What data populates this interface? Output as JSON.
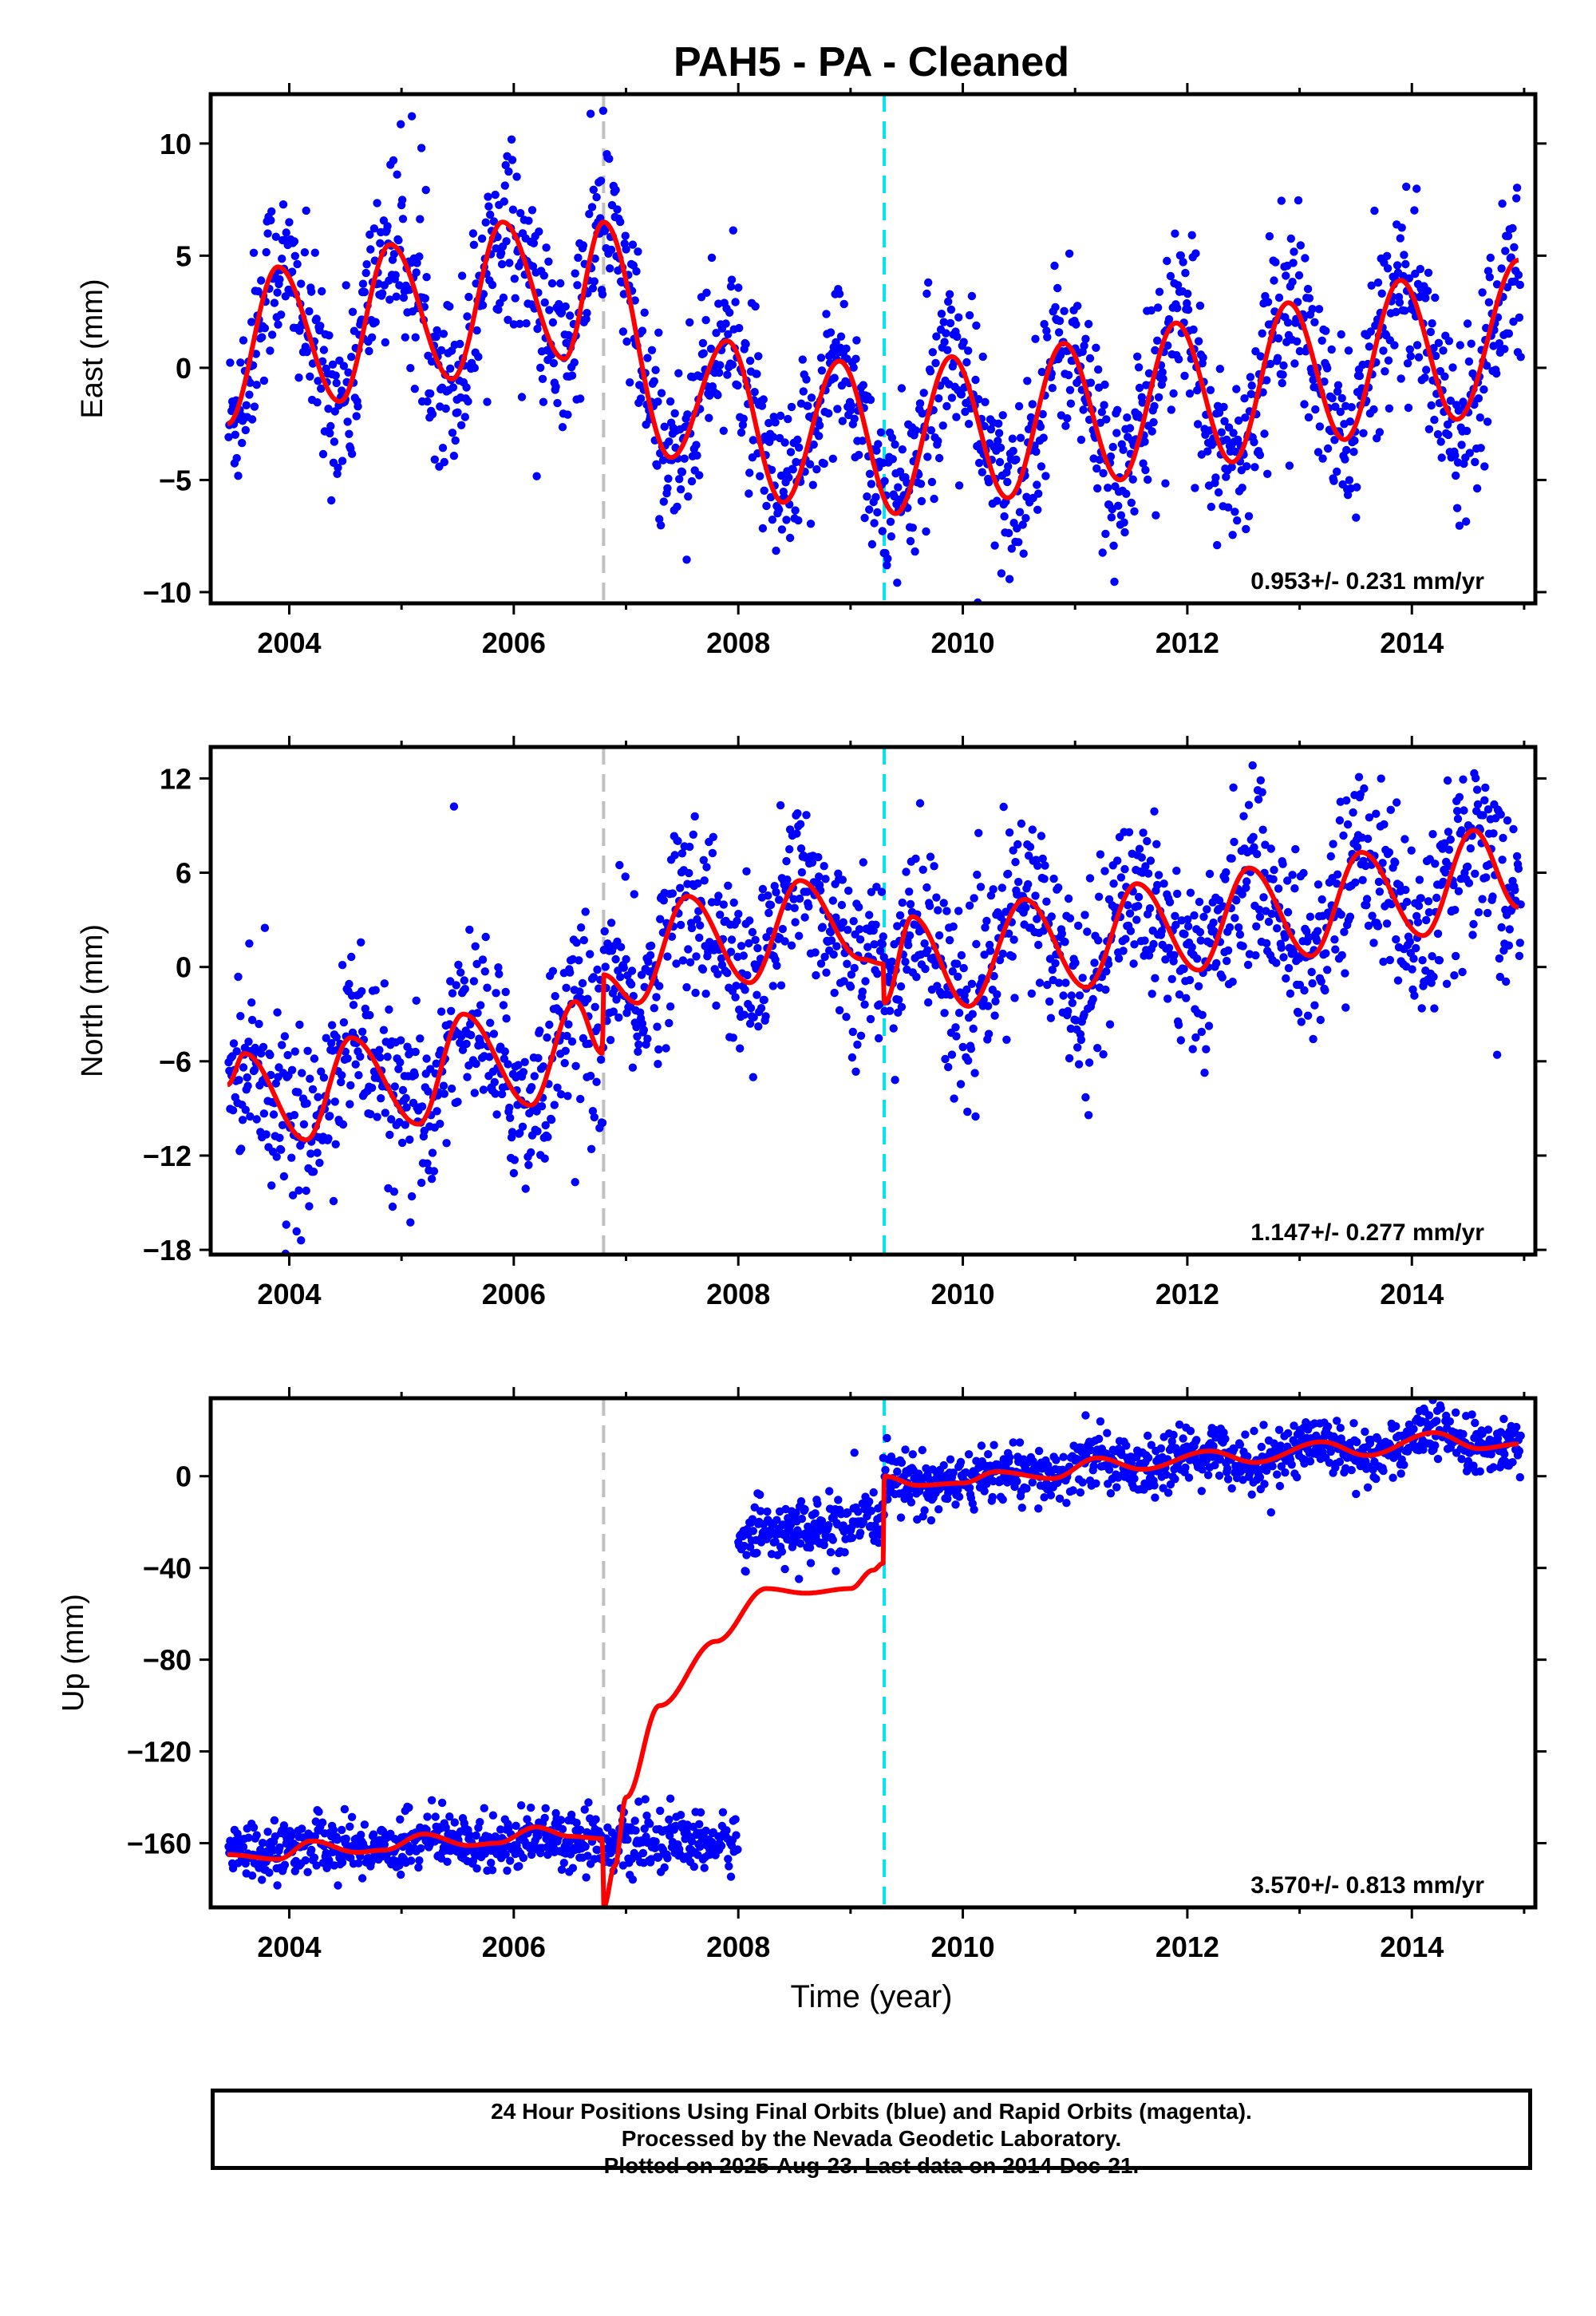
{
  "figure": {
    "title": "PAH5  - PA - Cleaned",
    "xlabel": "Time (year)",
    "notes": [
      "24 Hour Positions Using Final Orbits (blue) and Rapid Orbits (magenta).",
      "Processed by the Nevada Geodetic Laboratory.",
      "Plotted on 2025-Aug-23. Last data on 2014-Dec-21."
    ],
    "colors": {
      "points": "#0000ff",
      "model": "#ff0000",
      "event_gray": "#c0c0c0",
      "event_cyan": "#00e5ee"
    }
  },
  "chart_data": [
    {
      "type": "scatter",
      "panel": "east",
      "ylabel": "East (mm)",
      "xlim": [
        2003.3,
        2015.1
      ],
      "ylim": [
        -10.5,
        12.2
      ],
      "yticks": [
        -10,
        -5,
        0,
        5,
        10
      ],
      "yticklabels": [
        "−10",
        "−5",
        "0",
        "5",
        "10"
      ],
      "xticks": [
        2004,
        2006,
        2008,
        2010,
        2012,
        2014
      ],
      "xticklabels": [
        "2004",
        "2006",
        "2008",
        "2010",
        "2012",
        "2014"
      ],
      "rate_label": "0.953+/- 0.231 mm/yr",
      "event_lines": [
        {
          "x": 2006.8,
          "color": "gray"
        },
        {
          "x": 2009.3,
          "color": "cyan"
        }
      ],
      "model_nodes": {
        "x": [
          2003.45,
          2003.9,
          2004.45,
          2004.9,
          2005.45,
          2005.9,
          2006.45,
          2006.8,
          2007.4,
          2007.9,
          2008.4,
          2008.9,
          2009.4,
          2009.9,
          2010.4,
          2010.9,
          2011.4,
          2011.9,
          2012.4,
          2012.9,
          2013.4,
          2013.9,
          2014.4,
          2014.95
        ],
        "y": [
          -2.5,
          4.5,
          -1.5,
          5.5,
          -0.5,
          6.5,
          0.4,
          6.5,
          -4.0,
          1.2,
          -6.0,
          0.3,
          -6.5,
          0.5,
          -5.8,
          1.1,
          -5.0,
          2.0,
          -4.2,
          2.9,
          -3.2,
          3.9,
          -2.3,
          4.8
        ]
      }
    },
    {
      "type": "scatter",
      "panel": "north",
      "ylabel": "North (mm)",
      "xlim": [
        2003.3,
        2015.1
      ],
      "ylim": [
        -18.3,
        14.0
      ],
      "yticks": [
        -18,
        -12,
        -6,
        0,
        6,
        12
      ],
      "yticklabels": [
        "−18",
        "−12",
        "−6",
        "0",
        "6",
        "12"
      ],
      "xticks": [
        2004,
        2006,
        2008,
        2010,
        2012,
        2014
      ],
      "xticklabels": [
        "2004",
        "2006",
        "2008",
        "2010",
        "2012",
        "2014"
      ],
      "rate_label": "1.147+/- 0.277 mm/yr",
      "event_lines": [
        {
          "x": 2006.8,
          "color": "gray"
        },
        {
          "x": 2009.3,
          "color": "cyan"
        }
      ],
      "model_nodes": {
        "x": [
          2003.45,
          2003.6,
          2004.15,
          2004.55,
          2005.15,
          2005.55,
          2006.15,
          2006.55,
          2006.79,
          2006.8,
          2007.1,
          2007.55,
          2008.1,
          2008.55,
          2009.1,
          2009.29,
          2009.3,
          2009.55,
          2010.05,
          2010.55,
          2011.1,
          2011.55,
          2012.1,
          2012.55,
          2013.1,
          2013.55,
          2014.1,
          2014.55,
          2014.95
        ],
        "y": [
          -7.5,
          -5.5,
          -11.0,
          -4.5,
          -10.0,
          -3.0,
          -8.8,
          -2.2,
          -5.5,
          -0.5,
          -2.3,
          4.5,
          -1.0,
          5.5,
          0.5,
          0.2,
          -2.3,
          3.2,
          -2.5,
          4.3,
          -1.3,
          5.3,
          -0.2,
          6.3,
          0.7,
          7.3,
          2.0,
          8.7,
          3.8
        ]
      }
    },
    {
      "type": "scatter",
      "panel": "up",
      "ylabel": "Up (mm)",
      "xlim": [
        2003.3,
        2015.1
      ],
      "ylim": [
        -188,
        34
      ],
      "yticks": [
        -160,
        -120,
        -80,
        -40,
        0
      ],
      "yticklabels": [
        "−160",
        "−120",
        "−80",
        "−40",
        "0"
      ],
      "xticks": [
        2004,
        2006,
        2008,
        2010,
        2012,
        2014
      ],
      "xticklabels": [
        "2004",
        "2006",
        "2008",
        "2010",
        "2012",
        "2014"
      ],
      "rate_label": "3.570+/- 0.813 mm/yr",
      "event_lines": [
        {
          "x": 2006.8,
          "color": "gray"
        },
        {
          "x": 2009.3,
          "color": "cyan"
        }
      ],
      "data_segments": [
        {
          "x_start": 2003.45,
          "x_end": 2008.0,
          "level": -160,
          "spread": 5
        },
        {
          "x_start": 2008.0,
          "x_end": 2014.97,
          "level": 3,
          "spread": 6
        }
      ],
      "model_nodes": {
        "x": [
          2003.45,
          2003.9,
          2004.2,
          2004.6,
          2004.85,
          2005.2,
          2005.6,
          2005.85,
          2006.2,
          2006.5,
          2006.79,
          2006.8,
          2006.9,
          2007.0,
          2007.3,
          2007.8,
          2008.25,
          2008.6,
          2009.0,
          2009.2,
          2009.29,
          2009.3,
          2009.6,
          2010.0,
          2010.3,
          2010.8,
          2011.2,
          2011.6,
          2012.2,
          2012.6,
          2013.2,
          2013.6,
          2014.2,
          2014.6,
          2014.95
        ],
        "y": [
          -165,
          -167,
          -159,
          -164,
          -163,
          -156,
          -161,
          -160,
          -153,
          -157,
          -158,
          -188,
          -170,
          -140,
          -100,
          -72,
          -49,
          -51,
          -49,
          -41,
          -38,
          0,
          -4,
          -3,
          2,
          -1,
          8,
          3,
          11,
          6,
          15,
          9,
          19,
          12,
          14
        ]
      }
    }
  ]
}
